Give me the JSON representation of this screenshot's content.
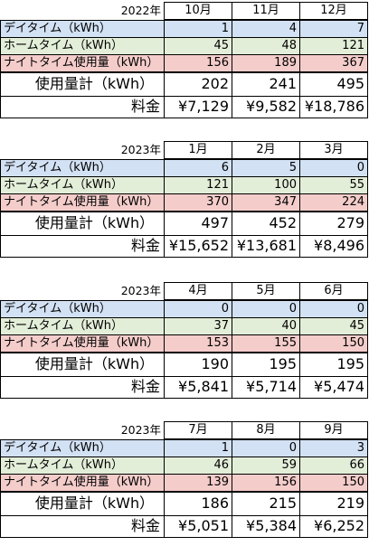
{
  "blocks": [
    {
      "year": "2022年",
      "months": [
        "10月",
        "11月",
        "12月"
      ],
      "rows": [
        {
          "label": "デイタイム（kWh）",
          "values": [
            "1",
            "4",
            "7"
          ]
        },
        {
          "label": "ホームタイム（kWh）",
          "values": [
            "45",
            "48",
            "121"
          ]
        },
        {
          "label": "ナイトタイム使用量（kWh）",
          "values": [
            "156",
            "189",
            "367"
          ]
        }
      ],
      "total_label": "使用量計（kWh）",
      "totals": [
        "202",
        "241",
        "495"
      ],
      "fee_label": "料金",
      "fees": [
        "¥7,129",
        "¥9,582",
        "¥18,786"
      ]
    },
    {
      "year": "2023年",
      "months": [
        "1月",
        "2月",
        "3月"
      ],
      "rows": [
        {
          "label": "デイタイム（kWh）",
          "values": [
            "6",
            "5",
            "0"
          ]
        },
        {
          "label": "ホームタイム（kWh）",
          "values": [
            "121",
            "100",
            "55"
          ]
        },
        {
          "label": "ナイトタイム使用量（kWh）",
          "values": [
            "370",
            "347",
            "224"
          ]
        }
      ],
      "total_label": "使用量計（kWh）",
      "totals": [
        "497",
        "452",
        "279"
      ],
      "fee_label": "料金",
      "fees": [
        "¥15,652",
        "¥13,681",
        "¥8,496"
      ]
    },
    {
      "year": "2023年",
      "months": [
        "4月",
        "5月",
        "6月"
      ],
      "rows": [
        {
          "label": "デイタイム（kWh）",
          "values": [
            "0",
            "0",
            "0"
          ]
        },
        {
          "label": "ホームタイム（kWh）",
          "values": [
            "37",
            "40",
            "45"
          ]
        },
        {
          "label": "ナイトタイム使用量（kWh）",
          "values": [
            "153",
            "155",
            "150"
          ]
        }
      ],
      "total_label": "使用量計（kWh）",
      "totals": [
        "190",
        "195",
        "195"
      ],
      "fee_label": "料金",
      "fees": [
        "¥5,841",
        "¥5,714",
        "¥5,474"
      ]
    },
    {
      "year": "2023年",
      "months": [
        "7月",
        "8月",
        "9月"
      ],
      "rows": [
        {
          "label": "デイタイム（kWh）",
          "values": [
            "1",
            "0",
            "3"
          ]
        },
        {
          "label": "ホームタイム（kWh）",
          "values": [
            "46",
            "59",
            "66"
          ]
        },
        {
          "label": "ナイトタイム使用量（kWh）",
          "values": [
            "139",
            "156",
            "150"
          ]
        }
      ],
      "total_label": "使用量計（kWh）",
      "totals": [
        "186",
        "215",
        "219"
      ],
      "fee_label": "料金",
      "fees": [
        "¥5,051",
        "¥5,384",
        "¥6,252"
      ]
    }
  ],
  "colors": {
    "daytime_row": "#d2e1f3",
    "hometime_row": "#e3eed9",
    "nighttime_row": "#f4cdcb"
  }
}
